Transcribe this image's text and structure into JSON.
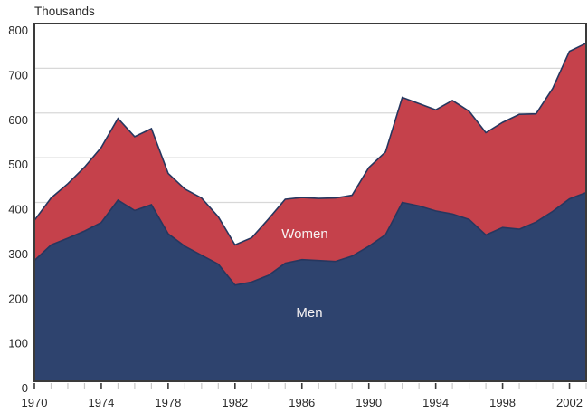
{
  "title": "Thousands",
  "chart_data": {
    "type": "area",
    "stacked": true,
    "title": "Thousands",
    "ylabel": "Thousands",
    "ylim": [
      0,
      800
    ],
    "y_tick_step": 100,
    "grid": "horizontal",
    "legend_position": "inside-area-labels",
    "x": [
      1970,
      1971,
      1972,
      1973,
      1974,
      1975,
      1976,
      1977,
      1978,
      1979,
      1980,
      1981,
      1982,
      1983,
      1984,
      1985,
      1986,
      1987,
      1988,
      1989,
      1990,
      1991,
      1992,
      1993,
      1994,
      1995,
      1996,
      1997,
      1998,
      1999,
      2000,
      2001,
      2002,
      2003
    ],
    "x_major_ticks": [
      1970,
      1974,
      1978,
      1982,
      1986,
      1990,
      1994,
      1998,
      2002
    ],
    "series": [
      {
        "name": "Men",
        "label": "Men",
        "values": [
          270,
          305,
          320,
          336,
          355,
          405,
          382,
          395,
          330,
          302,
          282,
          262,
          215,
          222,
          237,
          264,
          272,
          270,
          268,
          280,
          302,
          328,
          400,
          392,
          381,
          374,
          362,
          327,
          344,
          340,
          356,
          380,
          408,
          422
        ]
      },
      {
        "name": "Women",
        "label": "Women",
        "values": [
          90,
          105,
          122,
          143,
          168,
          183,
          165,
          170,
          135,
          128,
          128,
          106,
          90,
          99,
          126,
          143,
          139,
          139,
          142,
          136,
          176,
          185,
          235,
          229,
          226,
          254,
          242,
          229,
          235,
          257,
          242,
          275,
          330,
          334
        ]
      }
    ]
  },
  "axes": {
    "y_tick_labels": [
      "0",
      "100",
      "200",
      "300",
      "400",
      "500",
      "600",
      "700",
      "800"
    ],
    "x_tick_labels": [
      "1970",
      "1974",
      "1978",
      "1982",
      "1986",
      "1990",
      "1994",
      "1998",
      "2002"
    ]
  },
  "colors": {
    "men_area": "#2e436e",
    "women_area": "#c5414b",
    "boundary_line": "#26375f",
    "axis": "#3a3a3a",
    "gridline": "#d8d8d8",
    "minor_tick": "#c8c8c8",
    "text": "#2a2a2a",
    "area_label_text": "#f7f3f3",
    "background": "#ffffff"
  }
}
